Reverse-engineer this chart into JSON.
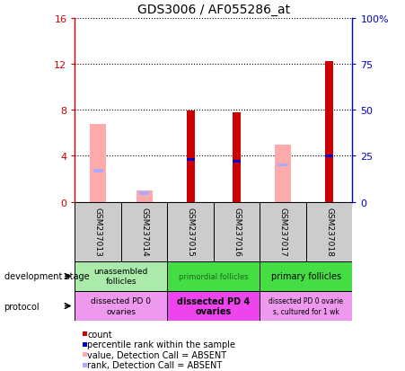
{
  "title": "GDS3006 / AF055286_at",
  "samples": [
    "GSM237013",
    "GSM237014",
    "GSM237015",
    "GSM237016",
    "GSM237017",
    "GSM237018"
  ],
  "count_values": [
    0,
    0,
    7.9,
    7.8,
    0,
    12.2
  ],
  "rank_values": [
    0,
    0,
    3.65,
    3.55,
    0,
    4.0
  ],
  "rank_marker_height": [
    0,
    0,
    0.25,
    0.25,
    0,
    0.25
  ],
  "absent_value": [
    6.8,
    1.0,
    0,
    0,
    5.0,
    0
  ],
  "absent_rank": [
    2.7,
    0.75,
    0,
    0,
    3.2,
    0
  ],
  "absent_rank_marker_height": [
    0.25,
    0.25,
    0,
    0,
    0.25,
    0
  ],
  "ylim_left": [
    0,
    16
  ],
  "ylim_right": [
    0,
    100
  ],
  "yticks_left": [
    0,
    4,
    8,
    12,
    16
  ],
  "ytick_labels_left": [
    "0",
    "4",
    "8",
    "12",
    "16"
  ],
  "yticks_right": [
    0,
    25,
    50,
    75,
    100
  ],
  "ytick_labels_right": [
    "0",
    "25",
    "50",
    "75",
    "100%"
  ],
  "color_count": "#cc0000",
  "color_rank": "#0000cc",
  "color_absent_value": "#ffaaaa",
  "color_absent_rank": "#aaaaff",
  "legend_items": [
    {
      "label": "count",
      "color": "#cc0000"
    },
    {
      "label": "percentile rank within the sample",
      "color": "#0000cc"
    },
    {
      "label": "value, Detection Call = ABSENT",
      "color": "#ffaaaa"
    },
    {
      "label": "rank, Detection Call = ABSENT",
      "color": "#aaaaff"
    }
  ],
  "background_color": "#ffffff",
  "tick_color_left": "#cc0000",
  "tick_color_right": "#0000cc"
}
